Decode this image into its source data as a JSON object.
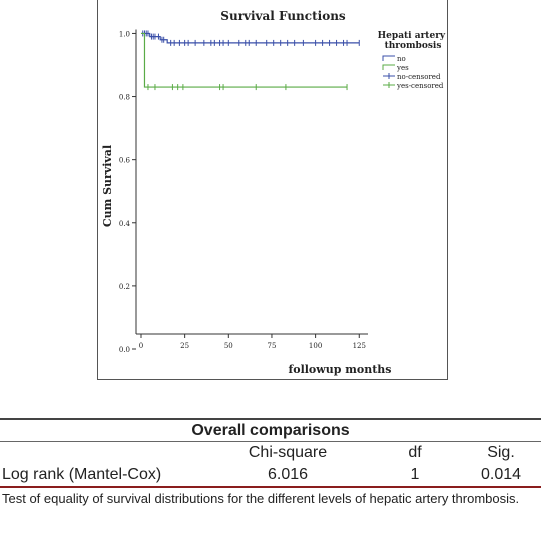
{
  "chart_data": {
    "type": "line",
    "title": "Survival Functions",
    "xlabel": "followup months",
    "ylabel": "Cum Survival",
    "xlim": [
      -4,
      130
    ],
    "ylim": [
      0,
      1.0
    ],
    "x_ticks": [
      "0",
      "25",
      "50",
      "75",
      "100",
      "125"
    ],
    "x_tick_values": [
      0,
      25,
      50,
      75,
      100,
      125
    ],
    "y_ticks": [
      "0.0",
      "0.2",
      "0.4",
      "0.6",
      "0.8",
      "1.0"
    ],
    "y_tick_values": [
      0.0,
      0.2,
      0.4,
      0.6,
      0.8,
      1.0
    ],
    "legend_title": "Hepati artery thrombosis",
    "legend_position": "right",
    "legend": [
      "no",
      "yes",
      "no-censored",
      "yes-censored"
    ],
    "series": [
      {
        "name": "no",
        "color": "#3a4fa8",
        "steps": [
          [
            0,
            1.0
          ],
          [
            5,
            0.99
          ],
          [
            11,
            0.98
          ],
          [
            15,
            0.97
          ],
          [
            125,
            0.97
          ]
        ],
        "censored_x": [
          1,
          2,
          3,
          4,
          6,
          7,
          8,
          10,
          12,
          13,
          17,
          19,
          22,
          25,
          27,
          31,
          36,
          40,
          42,
          45,
          47,
          50,
          56,
          60,
          62,
          66,
          72,
          76,
          80,
          84,
          88,
          93,
          100,
          104,
          108,
          112,
          116,
          118,
          125
        ]
      },
      {
        "name": "yes",
        "color": "#5aab46",
        "steps": [
          [
            0,
            1.0
          ],
          [
            2,
            0.83
          ],
          [
            118,
            0.83
          ]
        ],
        "censored_x": [
          4,
          8,
          18,
          21,
          24,
          45,
          47,
          66,
          83,
          118
        ]
      }
    ]
  },
  "comparisons": {
    "title": "Overall comparisons",
    "headers": [
      "Chi-square",
      "df",
      "Sig."
    ],
    "row_label": "Log rank (Mantel-Cox)",
    "chi_square": "6.016",
    "df": "1",
    "sig": "0.014",
    "footnote": "Test of equality of survival distributions for the different levels of hepatic artery thrombosis."
  }
}
